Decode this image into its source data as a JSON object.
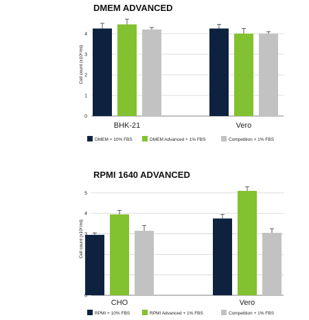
{
  "colors": {
    "navy": "#0e2240",
    "green": "#82c12f",
    "grey": "#c2c2c2",
    "grid": "#d0d0d0",
    "axis": "#555555"
  },
  "chart_data": [
    {
      "type": "bar",
      "title": "DMEM ADVANCED",
      "ylabel": "Cell count (x10⁶/ml)",
      "ylim": [
        0,
        5
      ],
      "yticks": [
        0,
        1,
        2,
        3,
        4
      ],
      "grid": true,
      "legend_position": "bottom",
      "categories": [
        "BHK-21",
        "Vero"
      ],
      "series": [
        {
          "name": "DMEM + 10% FBS",
          "color": "navy",
          "values": [
            4.25,
            4.25
          ],
          "errors": [
            0.25,
            0.2
          ]
        },
        {
          "name": "DMEM Advanced + 1% FBS",
          "color": "green",
          "values": [
            4.45,
            4.0
          ],
          "errors": [
            0.25,
            0.25
          ]
        },
        {
          "name": "Competition + 1% FBS",
          "color": "grey",
          "values": [
            4.2,
            4.0
          ],
          "errors": [
            0.1,
            0.1
          ]
        }
      ]
    },
    {
      "type": "bar",
      "title": "RPMI 1640 ADVANCED",
      "ylabel": "Cell count  (x10⁶/ml)",
      "ylim": [
        0,
        5.5
      ],
      "yticks": [
        0,
        1,
        2,
        3,
        4,
        5
      ],
      "grid": true,
      "legend_position": "bottom",
      "categories": [
        "CHO",
        "Vero"
      ],
      "series": [
        {
          "name": "RPMI + 10% FBS",
          "color": "navy",
          "values": [
            2.95,
            3.75
          ],
          "errors": [
            0.1,
            0.2
          ]
        },
        {
          "name": "RPMI Advanced + 1% FBS",
          "color": "green",
          "values": [
            3.95,
            5.1
          ],
          "errors": [
            0.2,
            0.2
          ]
        },
        {
          "name": "Competition + 1% FBS",
          "color": "grey",
          "values": [
            3.15,
            3.05
          ],
          "errors": [
            0.25,
            0.2
          ]
        }
      ]
    }
  ]
}
